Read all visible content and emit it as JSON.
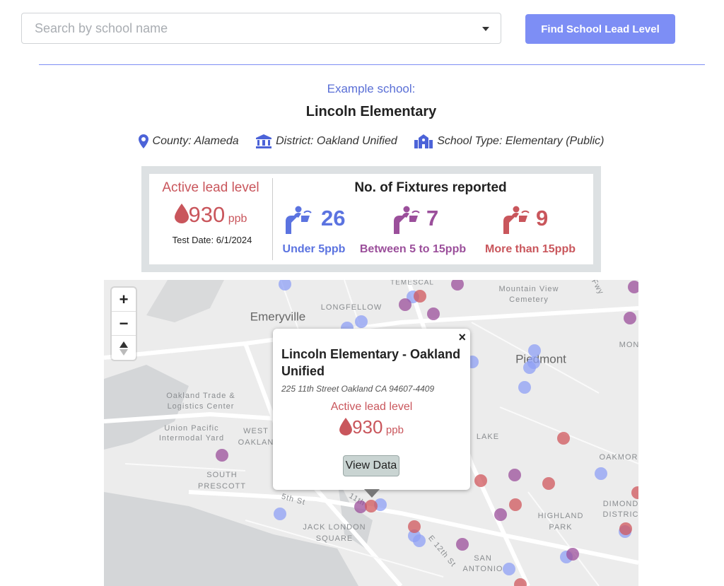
{
  "search": {
    "placeholder": "Search by school name",
    "button": "Find School Lead Level"
  },
  "school": {
    "caption": "Example school:",
    "name": "Lincoln Elementary",
    "county": "County: Alameda",
    "district": "District: Oakland Unified",
    "type": "School Type: Elementary (Public)"
  },
  "summary": {
    "lead_label": "Active lead level",
    "lead_value": "930",
    "lead_unit": "ppb",
    "test_date": "Test Date: 6/1/2024",
    "fixtures_title": "No. of Fixtures reported",
    "fixtures": [
      {
        "count": "26",
        "label": "Under 5ppb"
      },
      {
        "count": "7",
        "label": "Between 5 to 15ppb"
      },
      {
        "count": "9",
        "label": "More than 15ppb"
      }
    ]
  },
  "map": {
    "controls": {
      "zoom_in": "+",
      "zoom_out": "−"
    },
    "labels": [
      "TEMESCAL",
      "LONGFELLOW",
      "Emeryville",
      "Mountain View",
      "Cemetery",
      "Fwy",
      "Piedmont",
      "MON",
      "Oakland Trade &",
      "Logistics Center",
      "Union Pacific",
      "Intermodal Yard",
      "WEST",
      "OAKLAN",
      "SOUTH",
      "PRESCOTT",
      "5th St",
      "11th",
      "JACK LONDON",
      "SQUARE",
      "E 12th St",
      "SAN",
      "ANTONIO",
      "LAKE",
      "HIGHLAND",
      "PARK",
      "DIMOND",
      "DISTRIC",
      "OAKMOR"
    ],
    "popup": {
      "close": "×",
      "title": "Lincoln Elementary - Oakland Unified",
      "address": "225 11th Street Oakland CA 94607-4409",
      "lead_label": "Active lead level",
      "lead_value": "930",
      "lead_unit": "ppb",
      "button": "View Data"
    }
  }
}
